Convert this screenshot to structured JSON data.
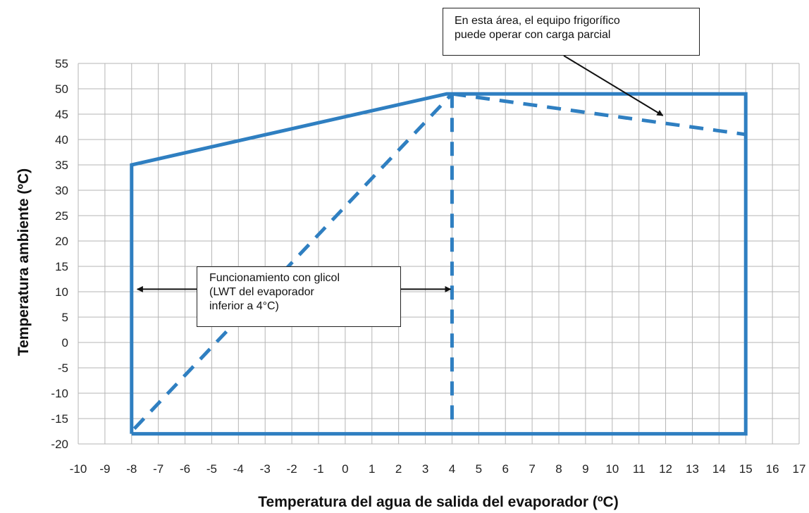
{
  "chart_data": {
    "type": "line",
    "title": "",
    "xlabel": "Temperatura del agua de salida del evaporador (ºC)",
    "ylabel": "Temperatura ambiente (ºC)",
    "xlim": [
      -10,
      17
    ],
    "ylim": [
      -20,
      55
    ],
    "x_ticks": [
      -10,
      -9,
      -8,
      -7,
      -6,
      -5,
      -4,
      -3,
      -2,
      -1,
      0,
      1,
      2,
      3,
      4,
      5,
      6,
      7,
      8,
      9,
      10,
      11,
      12,
      13,
      14,
      15,
      16,
      17
    ],
    "y_ticks": [
      -20,
      -15,
      -10,
      -5,
      0,
      5,
      10,
      15,
      20,
      25,
      30,
      35,
      40,
      45,
      50,
      55
    ],
    "grid": true,
    "color": "#2f7fc1",
    "series": [
      {
        "style": "solid",
        "points": [
          [
            -8,
            -18
          ],
          [
            -8,
            35
          ],
          [
            3.8,
            49
          ],
          [
            15,
            49
          ],
          [
            15,
            -18
          ],
          [
            -8,
            -18
          ]
        ]
      },
      {
        "style": "dashed",
        "points": [
          [
            -7.9,
            -17
          ],
          [
            4,
            49
          ]
        ]
      },
      {
        "style": "dashed",
        "points": [
          [
            4,
            49
          ],
          [
            4,
            -17
          ]
        ]
      },
      {
        "style": "dashed",
        "points": [
          [
            4,
            49
          ],
          [
            15,
            41
          ]
        ]
      }
    ],
    "annotations": [
      {
        "lines": [
          "En esta área, el equipo frigorífico",
          "puede operar con carga parcial"
        ],
        "arrow_to": [
          12,
          45
        ]
      },
      {
        "lines": [
          "Funcionamiento con glicol",
          "(LWT  del  evaporador",
          "inferior a 4°C)"
        ],
        "arrows_to": [
          [
            -8,
            10.5
          ],
          [
            4,
            10.5
          ]
        ]
      }
    ]
  }
}
